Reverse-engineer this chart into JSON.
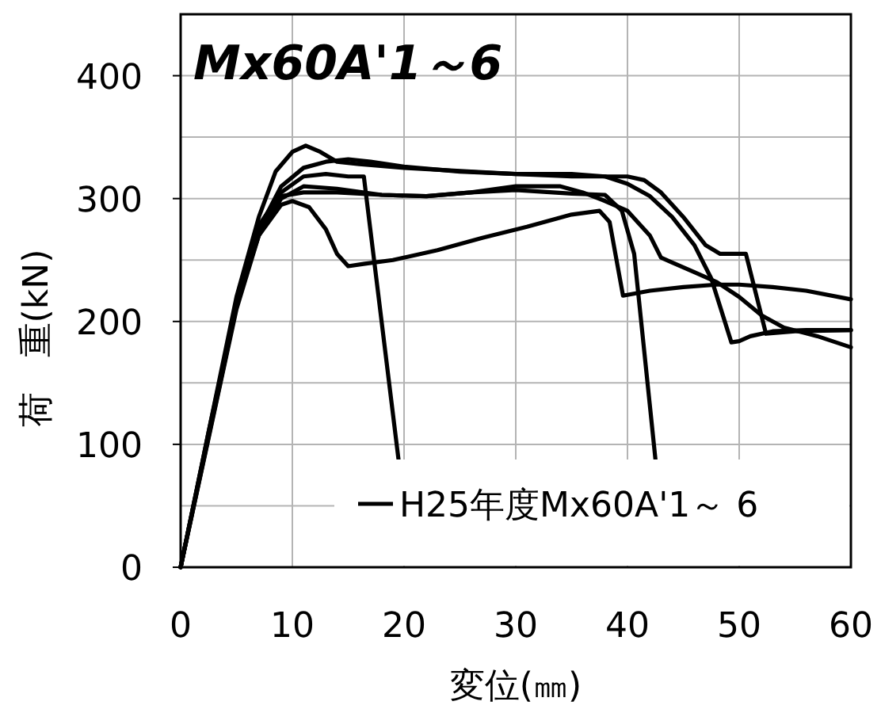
{
  "chart_data": {
    "type": "line",
    "title": "Mx60A'1～6",
    "xlabel": "変位(㎜)",
    "ylabel": "荷　重(kN)",
    "xlim": [
      0,
      60
    ],
    "xticks": [
      0,
      10,
      20,
      30,
      40,
      50,
      60
    ],
    "ylim": [
      0,
      450
    ],
    "yticks": [
      0,
      {
        "value": 50,
        "label": null
      },
      100,
      {
        "value": 150,
        "label": null
      },
      200,
      {
        "value": 250,
        "label": null
      },
      300,
      {
        "value": 350,
        "label": null
      },
      400
    ],
    "grid": true,
    "legend": "bottom right",
    "series": [
      {
        "name": "H25年度Mx60A'1～ 6",
        "color": "#000000",
        "x": [
          0,
          2.5,
          5,
          7,
          8.5,
          10,
          11.2,
          12.5,
          14,
          16,
          20,
          26,
          30,
          35,
          38,
          40,
          42,
          44,
          46,
          47.5,
          49.3,
          50,
          51,
          53,
          56,
          60
        ],
        "values": [
          0,
          110,
          220,
          285,
          322,
          338,
          343,
          338,
          330,
          328,
          325,
          322,
          320,
          320,
          318,
          312,
          302,
          285,
          262,
          235,
          183,
          184,
          188,
          192,
          193,
          193
        ]
      },
      {
        "color": "#000000",
        "x": [
          0,
          2.5,
          5,
          7,
          9,
          11,
          13,
          15,
          16.4,
          19.5
        ],
        "values": [
          0,
          108,
          215,
          278,
          305,
          318,
          320,
          318,
          318,
          88
        ]
      },
      {
        "color": "#000000",
        "x": [
          0,
          2.5,
          5,
          7,
          9,
          11,
          13,
          15,
          17,
          20,
          25,
          30,
          35,
          40,
          41.5,
          43,
          45,
          47,
          48.3,
          50.6,
          52.4,
          55,
          60
        ],
        "values": [
          0,
          106,
          212,
          275,
          310,
          325,
          330,
          332,
          330,
          326,
          322,
          320,
          318,
          318,
          315,
          305,
          285,
          262,
          255,
          255,
          190,
          192,
          193
        ]
      },
      {
        "color": "#000000",
        "x": [
          0,
          2.5,
          5,
          7,
          9,
          11,
          14,
          18,
          22,
          26,
          30,
          35,
          38,
          39.5,
          40.6,
          42.5
        ],
        "values": [
          0,
          105,
          210,
          270,
          300,
          310,
          308,
          303,
          302,
          305,
          307,
          304,
          303,
          290,
          255,
          88
        ]
      },
      {
        "color": "#000000",
        "x": [
          0,
          2.5,
          5,
          7,
          9,
          10,
          11.5,
          13,
          14,
          15,
          16.5,
          19,
          23,
          27,
          31,
          35,
          37.5,
          38.4,
          39.6,
          42,
          45,
          48,
          50,
          53,
          56,
          60
        ],
        "values": [
          0,
          110,
          215,
          270,
          295,
          298,
          293,
          275,
          255,
          245,
          247,
          250,
          258,
          268,
          277,
          287,
          290,
          281,
          221,
          225,
          228,
          230,
          230,
          228,
          225,
          218
        ]
      },
      {
        "color": "#000000",
        "x": [
          0,
          2.5,
          5,
          7,
          9,
          11,
          14,
          18,
          22,
          26,
          30,
          34,
          36,
          38,
          40,
          42,
          43,
          44,
          46,
          48,
          50,
          52,
          54,
          57,
          60
        ],
        "values": [
          0,
          108,
          213,
          275,
          302,
          305,
          305,
          303,
          302,
          305,
          310,
          310,
          305,
          298,
          290,
          270,
          252,
          248,
          240,
          232,
          220,
          205,
          195,
          188,
          179
        ]
      }
    ]
  }
}
